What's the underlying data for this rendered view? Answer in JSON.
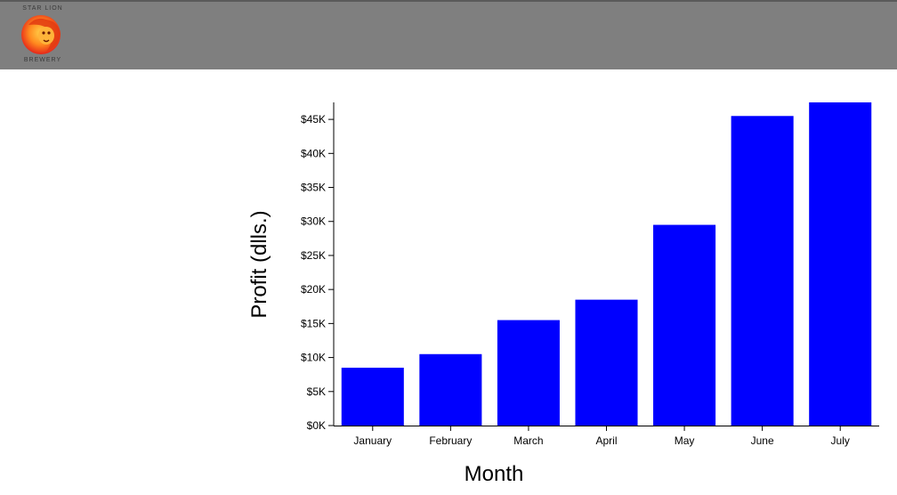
{
  "brand": {
    "logo_top_text": "STAR LION",
    "logo_bottom_text": "BREWERY"
  },
  "chart_data": {
    "type": "bar",
    "categories": [
      "January",
      "February",
      "March",
      "April",
      "May",
      "June",
      "July"
    ],
    "values": [
      8500,
      10500,
      15500,
      18500,
      29500,
      45500,
      47500
    ],
    "xlabel": "Month",
    "ylabel": "Profit (dlls.)",
    "ylim": [
      0,
      47500
    ],
    "yticks": [
      0,
      5000,
      10000,
      15000,
      20000,
      25000,
      30000,
      35000,
      40000,
      45000
    ],
    "ytick_labels": [
      "$0K",
      "$5K",
      "$10K",
      "$15K",
      "$20K",
      "$25K",
      "$30K",
      "$35K",
      "$40K",
      "$45K"
    ],
    "bar_color": "#0000ff",
    "grid": false,
    "legend": "none"
  }
}
